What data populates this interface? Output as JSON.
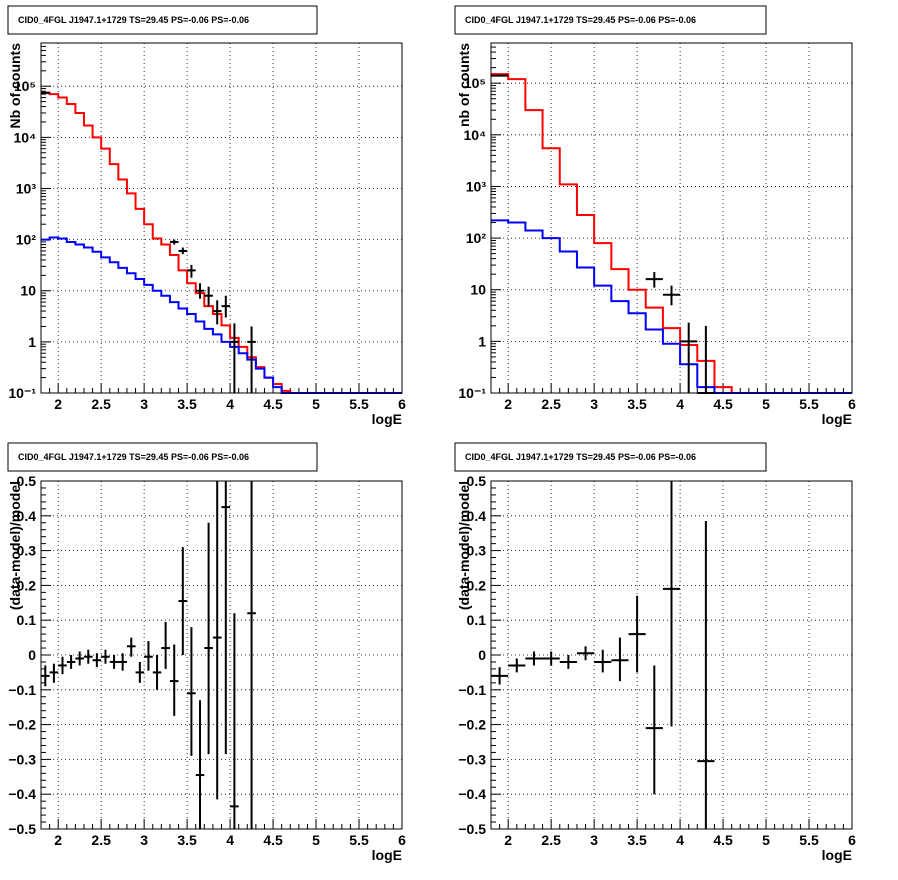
{
  "chart_data": [
    {
      "id": "p1",
      "type": "line",
      "title": "CID0_4FGL J1947.1+1729 TS=29.45 PS=-0.06 PS=-0.06",
      "xlabel": "logE",
      "ylabel": "Nb of counts",
      "xlim": [
        1.8,
        6.0
      ],
      "ylim": [
        0.1,
        700000
      ],
      "yscale": "log",
      "grid": true,
      "xticks": [
        2,
        2.5,
        3,
        3.5,
        4,
        4.5,
        5,
        5.5,
        6
      ],
      "xtick_labels": [
        "2",
        "2.5",
        "3",
        "3.5",
        "4",
        "4.5",
        "5",
        "5.5",
        "6"
      ],
      "yticks": [
        0.1,
        1,
        10,
        100,
        1000,
        10000,
        100000
      ],
      "ytick_labels": [
        "10⁻¹",
        "1",
        "10",
        "10²",
        "10³",
        "10⁴",
        "10⁵"
      ],
      "bin_edges": [
        1.8,
        1.9,
        2.0,
        2.1,
        2.2,
        2.3,
        2.4,
        2.5,
        2.6,
        2.7,
        2.8,
        2.9,
        3.0,
        3.1,
        3.2,
        3.3,
        3.4,
        3.5,
        3.6,
        3.7,
        3.8,
        3.9,
        4.0,
        4.1,
        4.2,
        4.3,
        4.4,
        4.5,
        4.6,
        4.7,
        4.8,
        4.9,
        5.0,
        5.1,
        5.2,
        5.3,
        5.4,
        5.5,
        5.6,
        5.7,
        5.8,
        5.9,
        6.0
      ],
      "series": [
        {
          "color": "#ff0000",
          "values": [
            75000,
            70000,
            60000,
            45000,
            30000,
            17000,
            10000,
            6000,
            3000,
            1500,
            800,
            400,
            200,
            105,
            80,
            50,
            25,
            14,
            9,
            5,
            3.5,
            2.1,
            1.2,
            0.8,
            0.5,
            0.32,
            0.2,
            0.15,
            0.11,
            0.1,
            0.1,
            0.1,
            0.1,
            0.1,
            0.1,
            0.1,
            0.1,
            0.1,
            0.1,
            0.1,
            0.1,
            0.1
          ]
        },
        {
          "color": "#0000ff",
          "values": [
            100,
            110,
            105,
            90,
            80,
            70,
            58,
            45,
            36,
            28,
            22,
            17,
            13,
            10,
            8,
            6,
            4.5,
            3.5,
            2.5,
            1.8,
            1.4,
            1.0,
            0.8,
            0.6,
            0.45,
            0.3,
            0.2,
            0.13,
            0.1,
            0.1,
            0.1,
            0.1,
            0.1,
            0.1,
            0.1,
            0.1,
            0.1,
            0.1,
            0.1,
            0.1,
            0.1,
            0.1
          ]
        }
      ],
      "points": [
        {
          "x": 1.85,
          "y": 74000,
          "xerr": 0.05,
          "ylo": 73000,
          "yhi": 75000
        },
        {
          "x": 3.35,
          "y": 90,
          "xerr": 0.05,
          "ylo": 80,
          "yhi": 100
        },
        {
          "x": 3.45,
          "y": 60,
          "xerr": 0.05,
          "ylo": 52,
          "yhi": 70
        },
        {
          "x": 3.55,
          "y": 25,
          "xerr": 0.05,
          "ylo": 18,
          "yhi": 32
        },
        {
          "x": 3.65,
          "y": 10,
          "xerr": 0.05,
          "ylo": 7,
          "yhi": 14
        },
        {
          "x": 3.75,
          "y": 8,
          "xerr": 0.05,
          "ylo": 5,
          "yhi": 12
        },
        {
          "x": 3.85,
          "y": 4,
          "xerr": 0.05,
          "ylo": 2.2,
          "yhi": 6.5
        },
        {
          "x": 3.95,
          "y": 5,
          "xerr": 0.05,
          "ylo": 3,
          "yhi": 8
        },
        {
          "x": 4.05,
          "y": 1,
          "xerr": 0.05,
          "ylo": 0.1,
          "yhi": 2.3
        },
        {
          "x": 4.25,
          "y": 1,
          "xerr": 0.05,
          "ylo": 0.1,
          "yhi": 2.0
        }
      ]
    },
    {
      "id": "p2",
      "type": "line",
      "title": "CID0_4FGL J1947.1+1729 TS=29.45 PS=-0.06 PS=-0.06",
      "xlabel": "logE",
      "ylabel": "nb of counts",
      "xlim": [
        1.8,
        6.0
      ],
      "ylim": [
        0.1,
        600000
      ],
      "yscale": "log",
      "grid": true,
      "xticks": [
        2,
        2.5,
        3,
        3.5,
        4,
        4.5,
        5,
        5.5,
        6
      ],
      "xtick_labels": [
        "2",
        "2.5",
        "3",
        "3.5",
        "4",
        "4.5",
        "5",
        "5.5",
        "6"
      ],
      "yticks": [
        0.1,
        1,
        10,
        100,
        1000,
        10000,
        100000
      ],
      "ytick_labels": [
        "10⁻¹",
        "1",
        "10",
        "10²",
        "10³",
        "10⁴",
        "10⁵"
      ],
      "bin_edges": [
        1.8,
        2.0,
        2.2,
        2.4,
        2.6,
        2.8,
        3.0,
        3.2,
        3.4,
        3.6,
        3.8,
        4.0,
        4.2,
        4.4,
        4.6,
        4.8,
        5.0,
        5.2,
        5.4,
        5.6,
        5.8,
        6.0
      ],
      "series": [
        {
          "color": "#ff0000",
          "values": [
            150000,
            120000,
            30000,
            5500,
            1100,
            280,
            80,
            25,
            10,
            4.5,
            1.8,
            0.85,
            0.42,
            0.13,
            0.1,
            0.1,
            0.1,
            0.1,
            0.1,
            0.1,
            0.1
          ]
        },
        {
          "color": "#0000ff",
          "values": [
            220,
            200,
            140,
            100,
            55,
            27,
            12,
            6,
            3.5,
            1.7,
            0.9,
            0.36,
            0.13,
            0.1,
            0.1,
            0.1,
            0.1,
            0.1,
            0.1,
            0.1,
            0.1
          ]
        }
      ],
      "points": [
        {
          "x": 1.9,
          "y": 140000,
          "xerr": 0.1,
          "ylo": 138000,
          "yhi": 142000
        },
        {
          "x": 3.7,
          "y": 16,
          "xerr": 0.1,
          "ylo": 11,
          "yhi": 22
        },
        {
          "x": 3.9,
          "y": 8,
          "xerr": 0.1,
          "ylo": 5,
          "yhi": 12
        },
        {
          "x": 4.1,
          "y": 1,
          "xerr": 0.1,
          "ylo": 0.1,
          "yhi": 2.3
        },
        {
          "x": 4.3,
          "y": 0.1,
          "xerr": 0.1,
          "ylo": 0.1,
          "yhi": 2.0
        }
      ]
    },
    {
      "id": "p3",
      "type": "scatter",
      "title": "CID0_4FGL J1947.1+1729 TS=29.45 PS=-0.06 PS=-0.06",
      "xlabel": "logE",
      "ylabel": "(data-model)/model",
      "xlim": [
        1.8,
        6.0
      ],
      "ylim": [
        -0.5,
        0.5
      ],
      "yscale": "linear",
      "grid": true,
      "xticks": [
        2,
        2.5,
        3,
        3.5,
        4,
        4.5,
        5,
        5.5,
        6
      ],
      "xtick_labels": [
        "2",
        "2.5",
        "3",
        "3.5",
        "4",
        "4.5",
        "5",
        "5.5",
        "6"
      ],
      "yticks": [
        -0.5,
        -0.4,
        -0.3,
        -0.2,
        -0.1,
        0,
        0.1,
        0.2,
        0.3,
        0.4,
        0.5
      ],
      "ytick_labels": [
        "−0.5",
        "−0.4",
        "−0.3",
        "−0.2",
        "−0.1",
        "0",
        "0.1",
        "0.2",
        "0.3",
        "0.4",
        "0.5"
      ],
      "points": [
        {
          "x": 1.85,
          "y": -0.06,
          "xerr": 0.05,
          "ylo": -0.09,
          "yhi": -0.03
        },
        {
          "x": 1.95,
          "y": -0.05,
          "xerr": 0.05,
          "ylo": -0.08,
          "yhi": -0.025
        },
        {
          "x": 2.05,
          "y": -0.03,
          "xerr": 0.05,
          "ylo": -0.055,
          "yhi": -0.005
        },
        {
          "x": 2.15,
          "y": -0.02,
          "xerr": 0.05,
          "ylo": -0.04,
          "yhi": 0.0
        },
        {
          "x": 2.25,
          "y": -0.01,
          "xerr": 0.05,
          "ylo": -0.03,
          "yhi": 0.01
        },
        {
          "x": 2.35,
          "y": -0.005,
          "xerr": 0.05,
          "ylo": -0.025,
          "yhi": 0.015
        },
        {
          "x": 2.45,
          "y": -0.015,
          "xerr": 0.05,
          "ylo": -0.035,
          "yhi": 0.005
        },
        {
          "x": 2.55,
          "y": -0.005,
          "xerr": 0.05,
          "ylo": -0.025,
          "yhi": 0.015
        },
        {
          "x": 2.65,
          "y": -0.02,
          "xerr": 0.05,
          "ylo": -0.04,
          "yhi": 0.0
        },
        {
          "x": 2.75,
          "y": -0.02,
          "xerr": 0.05,
          "ylo": -0.045,
          "yhi": 0.005
        },
        {
          "x": 2.85,
          "y": 0.025,
          "xerr": 0.05,
          "ylo": -0.005,
          "yhi": 0.05
        },
        {
          "x": 2.95,
          "y": -0.05,
          "xerr": 0.05,
          "ylo": -0.08,
          "yhi": -0.02
        },
        {
          "x": 3.05,
          "y": -0.005,
          "xerr": 0.05,
          "ylo": -0.045,
          "yhi": 0.04
        },
        {
          "x": 3.15,
          "y": -0.05,
          "xerr": 0.05,
          "ylo": -0.1,
          "yhi": 0.0
        },
        {
          "x": 3.25,
          "y": 0.02,
          "xerr": 0.05,
          "ylo": -0.04,
          "yhi": 0.095
        },
        {
          "x": 3.35,
          "y": -0.075,
          "xerr": 0.05,
          "ylo": -0.175,
          "yhi": 0.03
        },
        {
          "x": 3.45,
          "y": 0.155,
          "xerr": 0.05,
          "ylo": 0.0,
          "yhi": 0.31
        },
        {
          "x": 3.55,
          "y": -0.11,
          "xerr": 0.05,
          "ylo": -0.29,
          "yhi": 0.08
        },
        {
          "x": 3.65,
          "y": -0.345,
          "xerr": 0.05,
          "ylo": -0.5,
          "yhi": -0.13
        },
        {
          "x": 3.75,
          "y": 0.02,
          "xerr": 0.05,
          "ylo": -0.285,
          "yhi": 0.38
        },
        {
          "x": 3.85,
          "y": 0.05,
          "xerr": 0.05,
          "ylo": -0.415,
          "yhi": 0.5
        },
        {
          "x": 3.95,
          "y": 0.425,
          "xerr": 0.05,
          "ylo": -0.285,
          "yhi": 0.5
        },
        {
          "x": 4.05,
          "y": -0.435,
          "xerr": 0.05,
          "ylo": -0.5,
          "yhi": 0.12
        },
        {
          "x": 4.25,
          "y": 0.12,
          "xerr": 0.05,
          "ylo": -0.5,
          "yhi": 0.5
        }
      ]
    },
    {
      "id": "p4",
      "type": "scatter",
      "title": "CID0_4FGL J1947.1+1729 TS=29.45 PS=-0.06 PS=-0.06",
      "xlabel": "logE",
      "ylabel": "(data-model)/model",
      "xlim": [
        1.8,
        6.0
      ],
      "ylim": [
        -0.5,
        0.5
      ],
      "yscale": "linear",
      "grid": true,
      "xticks": [
        2,
        2.5,
        3,
        3.5,
        4,
        4.5,
        5,
        5.5,
        6
      ],
      "xtick_labels": [
        "2",
        "2.5",
        "3",
        "3.5",
        "4",
        "4.5",
        "5",
        "5.5",
        "6"
      ],
      "yticks": [
        -0.5,
        -0.4,
        -0.3,
        -0.2,
        -0.1,
        0,
        0.1,
        0.2,
        0.3,
        0.4,
        0.5
      ],
      "ytick_labels": [
        "−0.5",
        "−0.4",
        "−0.3",
        "−0.2",
        "−0.1",
        "0",
        "0.1",
        "0.2",
        "0.3",
        "0.4",
        "0.5"
      ],
      "points": [
        {
          "x": 1.9,
          "y": -0.06,
          "xerr": 0.1,
          "ylo": -0.085,
          "yhi": -0.035
        },
        {
          "x": 2.1,
          "y": -0.03,
          "xerr": 0.1,
          "ylo": -0.05,
          "yhi": -0.01
        },
        {
          "x": 2.3,
          "y": -0.01,
          "xerr": 0.1,
          "ylo": -0.03,
          "yhi": 0.01
        },
        {
          "x": 2.5,
          "y": -0.01,
          "xerr": 0.1,
          "ylo": -0.03,
          "yhi": 0.01
        },
        {
          "x": 2.7,
          "y": -0.02,
          "xerr": 0.1,
          "ylo": -0.04,
          "yhi": 0.0
        },
        {
          "x": 2.9,
          "y": 0.005,
          "xerr": 0.1,
          "ylo": -0.015,
          "yhi": 0.025
        },
        {
          "x": 3.1,
          "y": -0.02,
          "xerr": 0.1,
          "ylo": -0.05,
          "yhi": 0.015
        },
        {
          "x": 3.3,
          "y": -0.015,
          "xerr": 0.1,
          "ylo": -0.075,
          "yhi": 0.05
        },
        {
          "x": 3.5,
          "y": 0.06,
          "xerr": 0.1,
          "ylo": -0.05,
          "yhi": 0.17
        },
        {
          "x": 3.7,
          "y": -0.21,
          "xerr": 0.1,
          "ylo": -0.4,
          "yhi": -0.03
        },
        {
          "x": 3.9,
          "y": 0.19,
          "xerr": 0.1,
          "ylo": -0.205,
          "yhi": 0.5
        },
        {
          "x": 4.3,
          "y": -0.305,
          "xerr": 0.1,
          "ylo": -0.5,
          "yhi": 0.385
        }
      ]
    }
  ]
}
